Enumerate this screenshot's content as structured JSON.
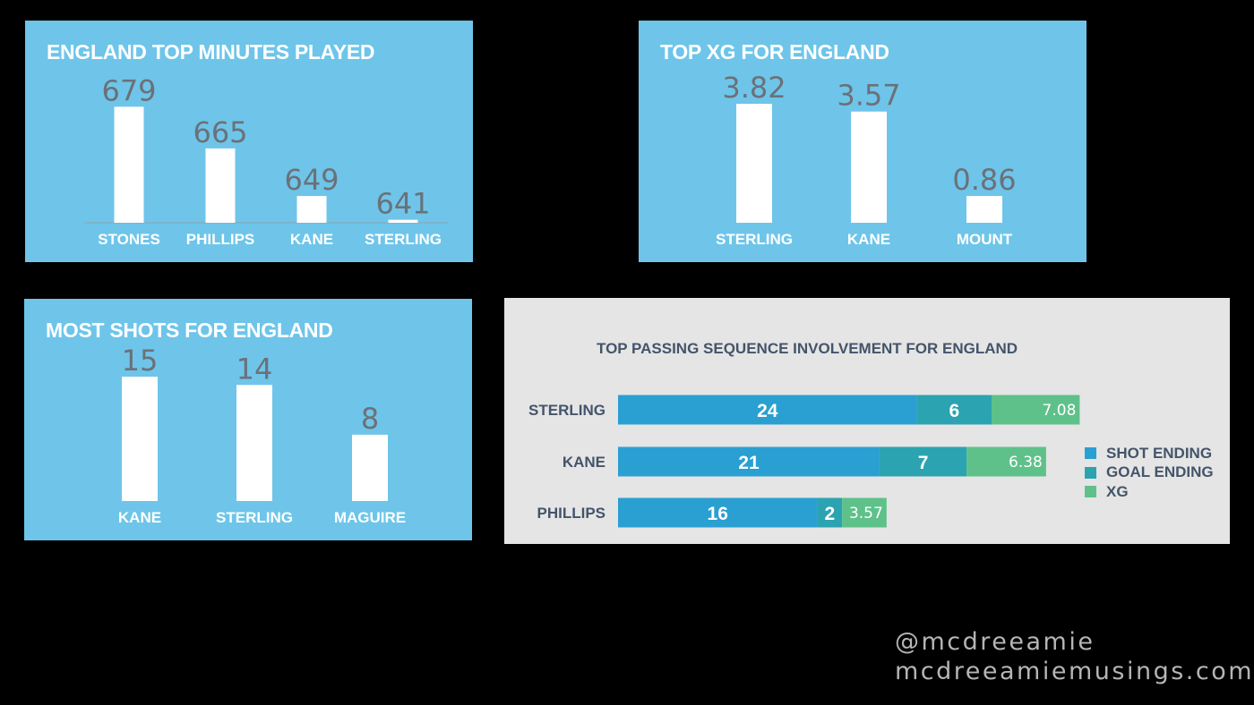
{
  "charts": [
    {
      "key": "minutes",
      "chart_data": {
        "type": "bar",
        "title": "ENGLAND TOP MINUTES PLAYED",
        "categories": [
          "STONES",
          "PHILLIPS",
          "KANE",
          "STERLING"
        ],
        "values": [
          679,
          665,
          649,
          641
        ],
        "value_labels": [
          "679",
          "665",
          "649",
          "641"
        ],
        "ylim": [
          640,
          680
        ],
        "grid": false,
        "baseline_visible": true,
        "bar_color": "#FFFFFF"
      }
    },
    {
      "key": "xg",
      "chart_data": {
        "type": "bar",
        "title": "TOP XG FOR ENGLAND",
        "categories": [
          "STERLING",
          "KANE",
          "MOUNT"
        ],
        "values": [
          3.82,
          3.57,
          0.86
        ],
        "value_labels": [
          "3.82",
          "3.57",
          "0.86"
        ],
        "ylim": [
          0,
          3.82
        ],
        "grid": false,
        "baseline_visible": false,
        "bar_color": "#FFFFFF"
      }
    },
    {
      "key": "shots",
      "chart_data": {
        "type": "bar",
        "title": "MOST SHOTS FOR ENGLAND",
        "categories": [
          "KANE",
          "STERLING",
          "MAGUIRE"
        ],
        "values": [
          15,
          14,
          8
        ],
        "value_labels": [
          "15",
          "14",
          "8"
        ],
        "ylim": [
          0,
          15
        ],
        "grid": false,
        "baseline_visible": false,
        "bar_color": "#FFFFFF"
      }
    },
    {
      "key": "passing",
      "chart_data": {
        "type": "bar",
        "orientation": "horizontal",
        "stacked": true,
        "title": "TOP PASSING SEQUENCE INVOLVEMENT FOR ENGLAND",
        "categories": [
          "STERLING",
          "KANE",
          "PHILLIPS"
        ],
        "series": [
          {
            "name": "SHOT ENDING",
            "values": [
              24,
              21,
              16
            ],
            "labels": [
              "24",
              "21",
              "16"
            ],
            "color": "#2A9FD1"
          },
          {
            "name": "GOAL ENDING",
            "values": [
              6,
              7,
              2
            ],
            "labels": [
              "6",
              "7",
              "2"
            ],
            "color": "#2BA3B1"
          },
          {
            "name": "XG",
            "values": [
              7.08,
              6.38,
              3.57
            ],
            "labels": [
              "7.08",
              "6.38",
              "3.57"
            ],
            "color": "#5FC18A"
          }
        ],
        "legend_position": "right",
        "grid": false
      }
    }
  ],
  "panel_colors": {
    "blue": "#6EC5E9",
    "gray": "#E5E5E5"
  },
  "watermark": {
    "handle": "@mcdreeamie",
    "site": "mcdreeamiemusings.com"
  }
}
